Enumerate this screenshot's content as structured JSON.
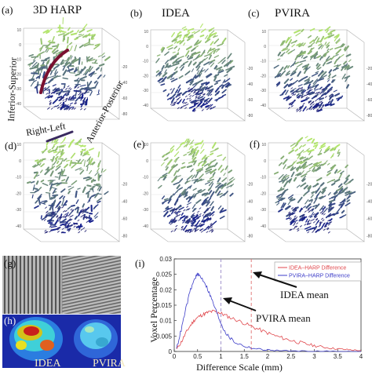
{
  "figure": {
    "panels": [
      {
        "label": "(a)",
        "title": "3D HARP"
      },
      {
        "label": "(b)",
        "title": "IDEA"
      },
      {
        "label": "(c)",
        "title": "PVIRA"
      },
      {
        "label": "(d)",
        "title": ""
      },
      {
        "label": "(e)",
        "title": ""
      },
      {
        "label": "(f)",
        "title": ""
      }
    ],
    "axis_annotations": {
      "inferior_superior": "Inferior-Superior",
      "anterior_posterior": "Anterior-Posterior",
      "right_left": "Right-Left"
    },
    "tick_labels": {
      "vertical": [
        "10",
        "0",
        "-10",
        "-20",
        "-30",
        "-40"
      ],
      "depth": [
        "-20",
        "-40",
        "-60",
        "-80"
      ]
    },
    "tag_panel_label": "(g)",
    "map_panel": {
      "label": "(h)",
      "left_caption": "IDEA",
      "right_caption": "PVIRA"
    }
  },
  "chart_data": {
    "type": "line",
    "label": "(i)",
    "title": "",
    "xlabel": "Difference Scale (mm)",
    "ylabel": "Voxel Percentage",
    "xlim": [
      0,
      4
    ],
    "ylim": [
      0,
      0.03
    ],
    "xticks": [
      "0",
      "0.5",
      "1",
      "1.5",
      "2",
      "2.5",
      "3",
      "3.5",
      "4"
    ],
    "yticks": [
      "0",
      "0.005",
      "0.01",
      "0.015",
      "0.02",
      "0.025",
      "0.03"
    ],
    "legend_position": "top-right",
    "series": [
      {
        "name": "IDEA–HARP Difference",
        "color": "#e0474c",
        "x": [
          0.05,
          0.15,
          0.25,
          0.35,
          0.45,
          0.55,
          0.65,
          0.75,
          0.85,
          0.95,
          1.05,
          1.2,
          1.4,
          1.6,
          1.8,
          2.0,
          2.2,
          2.4,
          2.6,
          2.8,
          3.0,
          3.2,
          3.4,
          3.6,
          3.8,
          4.0
        ],
        "y": [
          0.0008,
          0.003,
          0.006,
          0.0085,
          0.0105,
          0.0115,
          0.0122,
          0.0128,
          0.013,
          0.0127,
          0.012,
          0.011,
          0.0098,
          0.0085,
          0.0072,
          0.006,
          0.0049,
          0.004,
          0.0032,
          0.0025,
          0.0019,
          0.0014,
          0.001,
          0.0007,
          0.0005,
          0.0003
        ]
      },
      {
        "name": "PVIRA–HARP Difference",
        "color": "#3c3cc8",
        "x": [
          0.05,
          0.15,
          0.25,
          0.35,
          0.45,
          0.5,
          0.55,
          0.65,
          0.75,
          0.85,
          0.95,
          1.05,
          1.15,
          1.3,
          1.5,
          1.7,
          1.9,
          2.1,
          2.4,
          2.8,
          3.2,
          3.6,
          4.0
        ],
        "y": [
          0.001,
          0.007,
          0.014,
          0.02,
          0.024,
          0.025,
          0.0245,
          0.0225,
          0.019,
          0.015,
          0.011,
          0.0075,
          0.005,
          0.003,
          0.0017,
          0.001,
          0.0006,
          0.0004,
          0.0002,
          0.0001,
          5e-05,
          2e-05,
          0.0
        ]
      }
    ],
    "vlines": [
      {
        "x": 1.0,
        "color": "#9a8ac8",
        "style": "dashed"
      },
      {
        "x": 1.65,
        "color": "#e07070",
        "style": "dashed"
      }
    ],
    "annotations": [
      {
        "text": "IDEA mean",
        "points_to_x": 1.65
      },
      {
        "text": "PVIRA mean",
        "points_to_x": 1.0
      }
    ]
  }
}
